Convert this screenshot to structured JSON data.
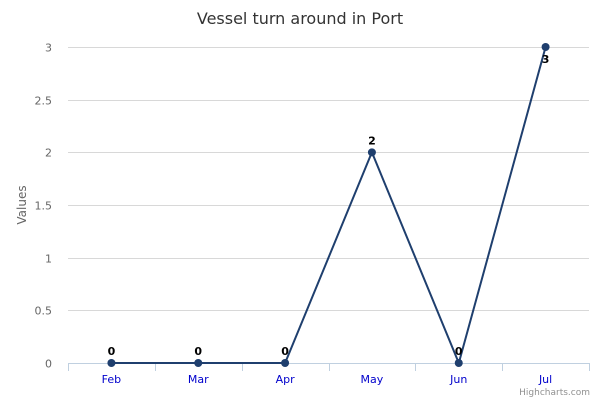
{
  "chart_data": {
    "type": "line",
    "title": "Vessel turn around in Port",
    "subtitle": "",
    "xlabel": "",
    "ylabel": "Values",
    "categories": [
      "Feb",
      "Mar",
      "Apr",
      "May",
      "Jun",
      "Jul"
    ],
    "series": [
      {
        "values": [
          0,
          0,
          0,
          2,
          0,
          3
        ],
        "color": "#1f3f6e",
        "data_labels": true
      }
    ],
    "ylim": [
      0,
      3
    ],
    "y_ticks": [
      0,
      0.5,
      1,
      1.5,
      2,
      2.5,
      3
    ],
    "y_tick_labels": [
      "0",
      "0.5",
      "1",
      "1.5",
      "2",
      "2.5",
      "3"
    ],
    "grid": true,
    "legend": "none",
    "credits": "Highcharts.com"
  },
  "colors": {
    "series": "#1f3f6e",
    "axis_label": "#666666",
    "tick_label": "#666666",
    "x_tick_label": "#0000cc",
    "gridline": "#d8d8d8",
    "credits": "#909090",
    "title": "#333333"
  }
}
